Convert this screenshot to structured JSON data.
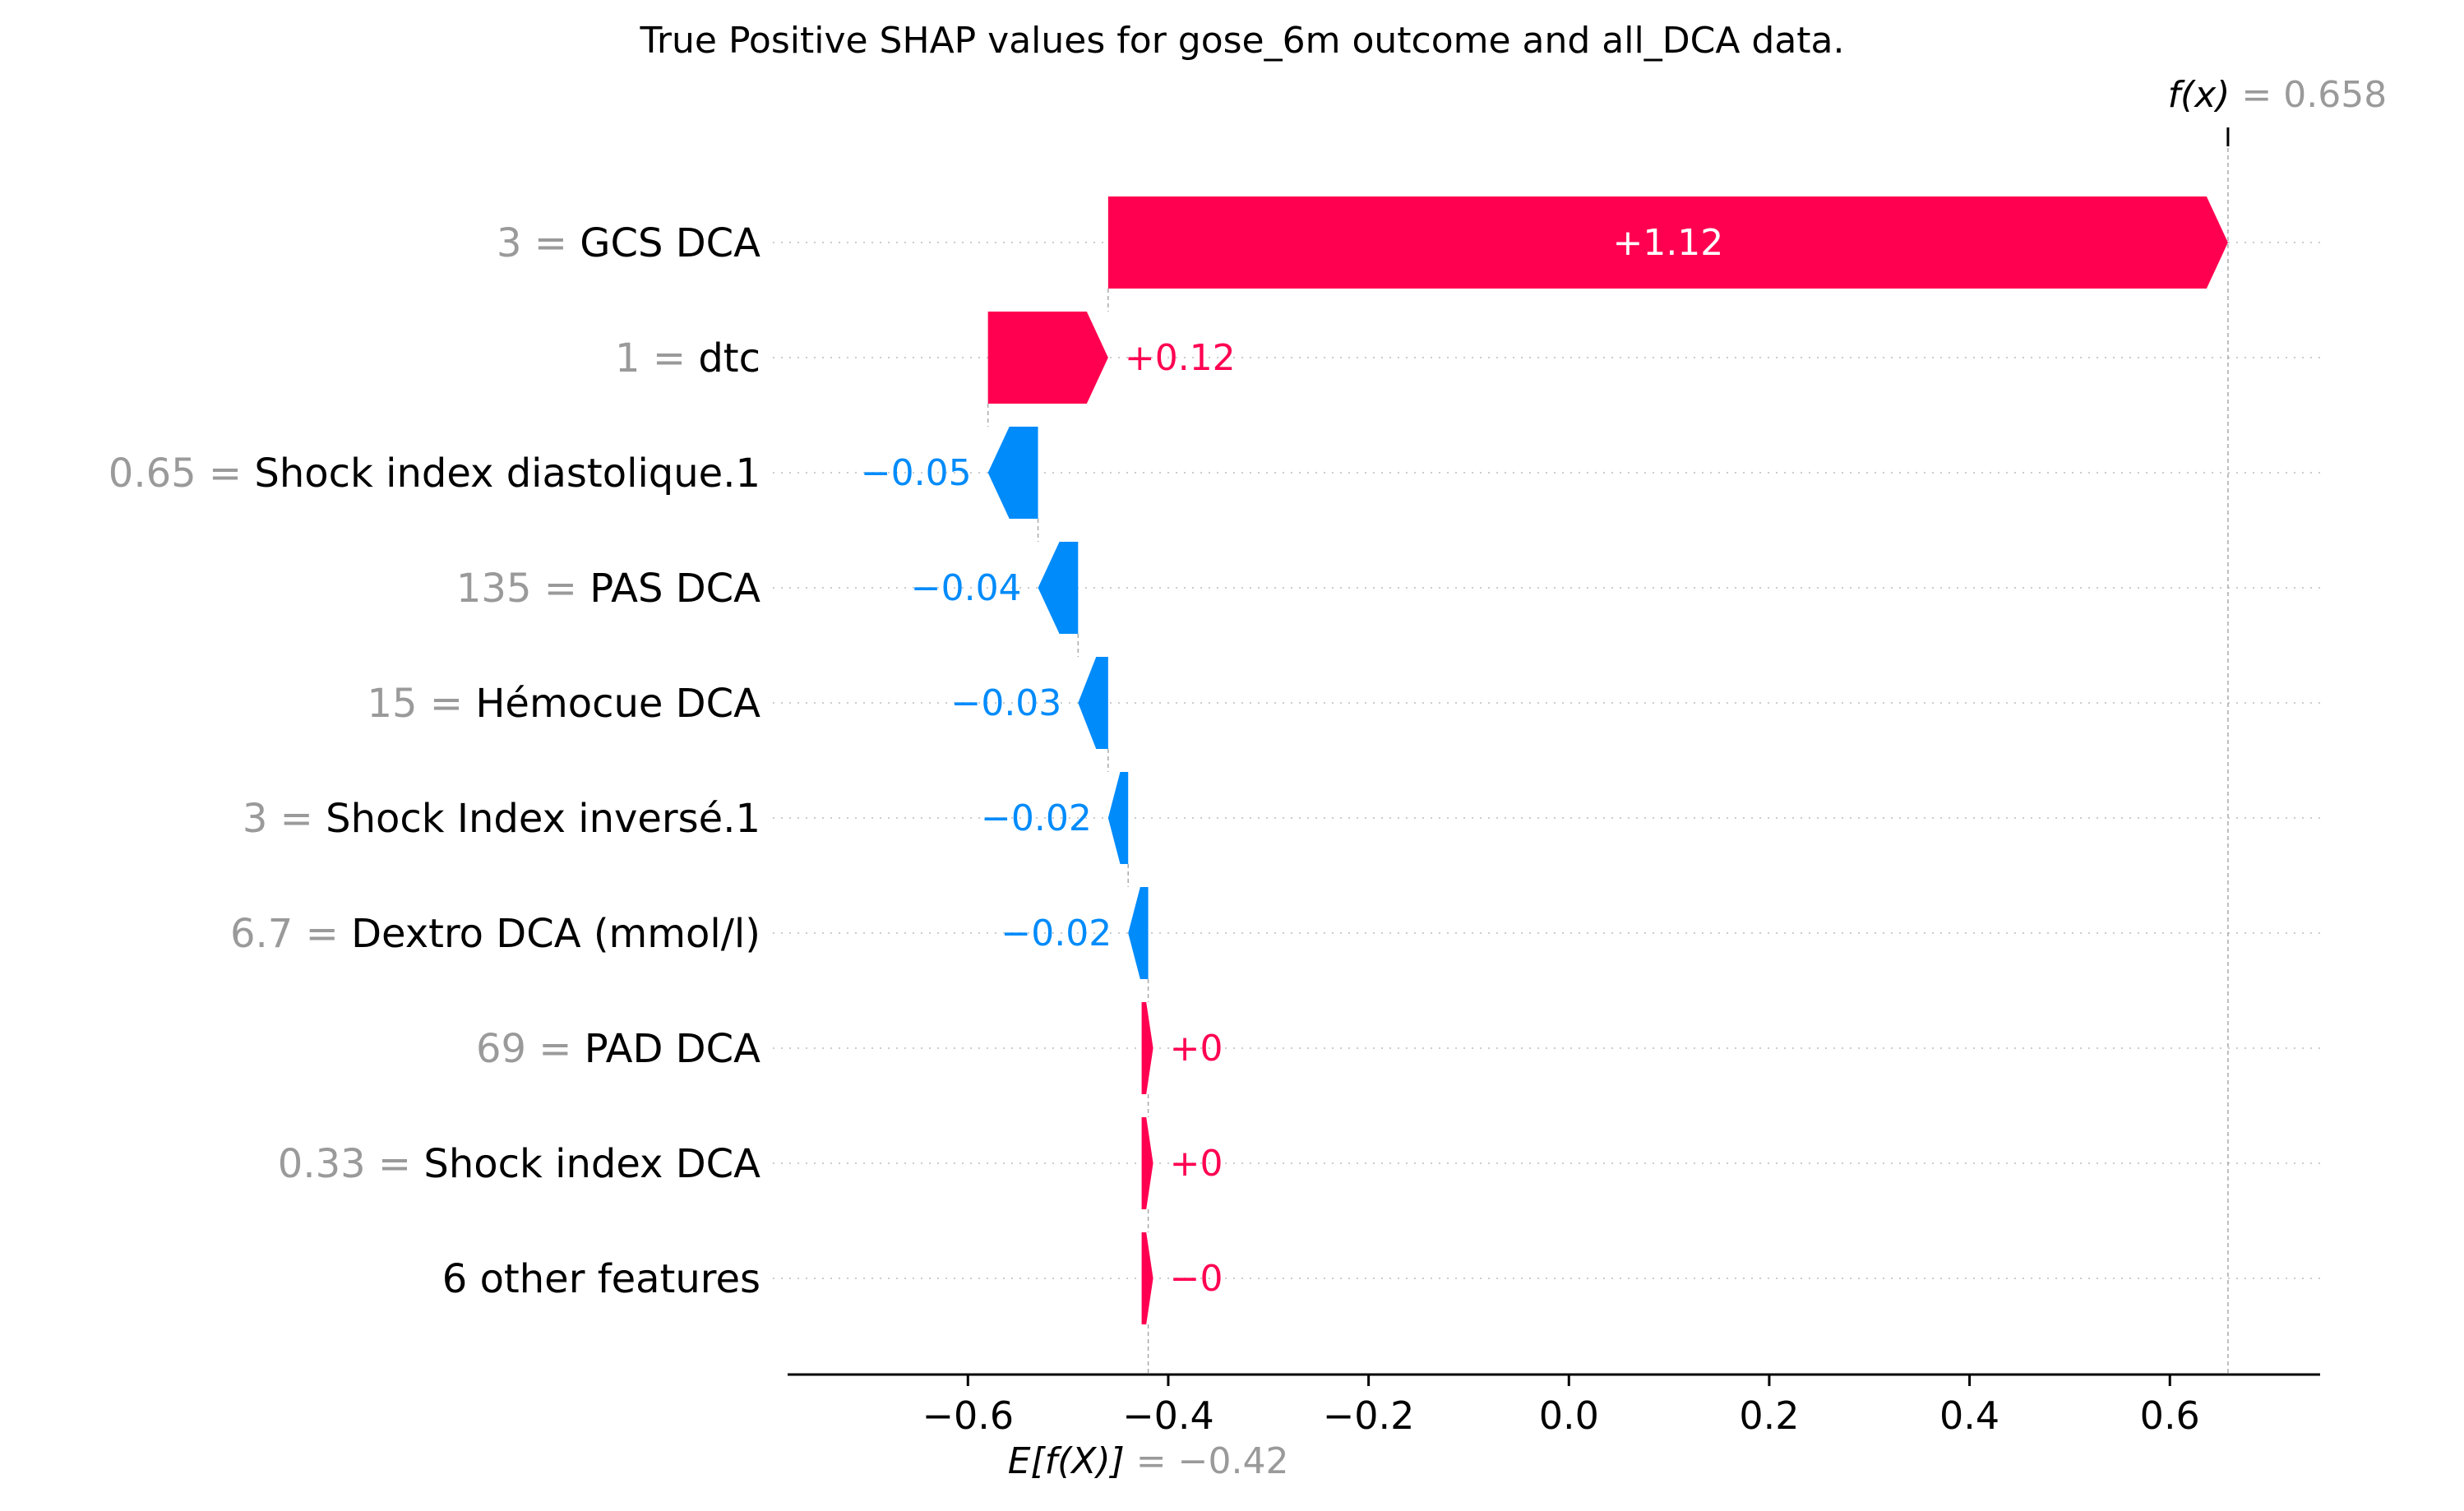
{
  "chart_data": {
    "type": "waterfall",
    "title": "True Positive SHAP values for gose_6m outcome and all_DCA data.",
    "base_value": -0.42,
    "base_label_main": "E[f(X)]",
    "base_label_value": " = −0.42",
    "final_value": 0.658,
    "final_label_main": "f(x)",
    "final_label_value": " = 0.658",
    "xlim": [
      -0.78,
      0.75
    ],
    "x_ticks": [
      -0.6,
      -0.4,
      -0.2,
      0.0,
      0.2,
      0.4,
      0.6
    ],
    "x_tick_labels": [
      "−0.6",
      "−0.4",
      "−0.2",
      "0.0",
      "0.2",
      "0.4",
      "0.6"
    ],
    "features": [
      {
        "value": "3",
        "name": "GCS DCA",
        "shap": 1.12,
        "label": "+1.12"
      },
      {
        "value": "1",
        "name": "dtc",
        "shap": 0.12,
        "label": "+0.12"
      },
      {
        "value": "0.65",
        "name": "Shock index diastolique.1",
        "shap": -0.05,
        "label": "−0.05"
      },
      {
        "value": "135",
        "name": "PAS DCA",
        "shap": -0.04,
        "label": "−0.04"
      },
      {
        "value": "15",
        "name": "Hémocue DCA",
        "shap": -0.03,
        "label": "−0.03"
      },
      {
        "value": "3",
        "name": "Shock Index inversé.1",
        "shap": -0.02,
        "label": "−0.02"
      },
      {
        "value": "6.7",
        "name": "Dextro DCA (mmol/l)",
        "shap": -0.02,
        "label": "−0.02"
      },
      {
        "value": "69",
        "name": "PAD DCA",
        "shap": 0.0,
        "label": "+0"
      },
      {
        "value": "0.33",
        "name": "Shock index DCA",
        "shap": 0.0,
        "label": "+0"
      },
      {
        "value": "",
        "name": "6 other features",
        "shap": 0.0,
        "label": "−0"
      }
    ],
    "colors": {
      "positive": "#ff0051",
      "negative": "#008bfb",
      "text_gray": "#9a9a9a"
    }
  }
}
